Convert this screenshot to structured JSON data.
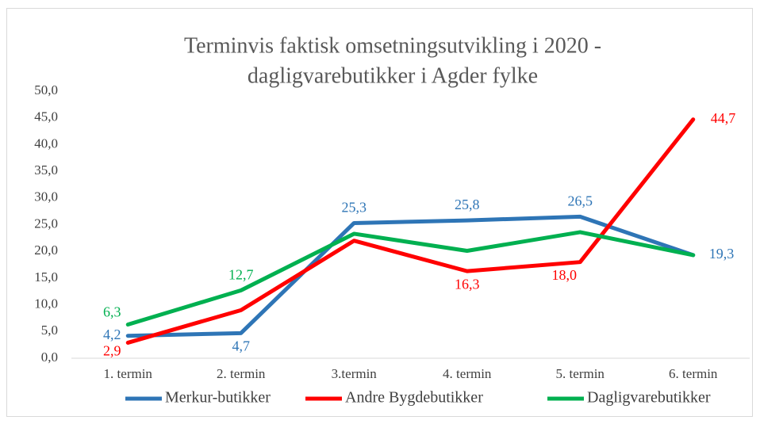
{
  "chart_data": {
    "type": "line",
    "title": [
      "Terminvis faktisk omsetningsutvikling i 2020 -",
      "dagligvarebutikker i Agder fylke"
    ],
    "categories": [
      "1. termin",
      "2. termin",
      "3.termin",
      "4. termin",
      "5. termin",
      "6. termin"
    ],
    "series": [
      {
        "name": "Merkur-butikker",
        "color": "#2e75b6",
        "values": [
          4.2,
          4.7,
          25.3,
          25.8,
          26.5,
          19.3
        ],
        "value_labels": [
          "4,2",
          "4,7",
          "25,3",
          "25,8",
          "26,5",
          "19,3"
        ]
      },
      {
        "name": "Andre Bygdebutikker",
        "color": "#ff0000",
        "values": [
          2.9,
          9.0,
          22.0,
          16.3,
          18.0,
          44.7
        ],
        "value_labels": [
          "2,9",
          null,
          null,
          "16,3",
          "18,0",
          "44,7"
        ]
      },
      {
        "name": "Dagligvarebutikker",
        "color": "#00b050",
        "values": [
          6.3,
          12.7,
          23.3,
          20.1,
          23.6,
          19.3
        ],
        "value_labels": [
          "6,3",
          "12,7",
          null,
          null,
          null,
          null
        ]
      }
    ],
    "ylim": [
      0,
      50
    ],
    "yticks": [
      {
        "value": 0,
        "label": "0,0"
      },
      {
        "value": 5,
        "label": "5,0"
      },
      {
        "value": 10,
        "label": "10,0"
      },
      {
        "value": 15,
        "label": "15,0"
      },
      {
        "value": 20,
        "label": "20,0"
      },
      {
        "value": 25,
        "label": "25,0"
      },
      {
        "value": 30,
        "label": "30,0"
      },
      {
        "value": 35,
        "label": "35,0"
      },
      {
        "value": 40,
        "label": "40,0"
      },
      {
        "value": 45,
        "label": "45,0"
      },
      {
        "value": 50,
        "label": "50,0"
      }
    ],
    "grid": false,
    "legend": "bottom"
  }
}
